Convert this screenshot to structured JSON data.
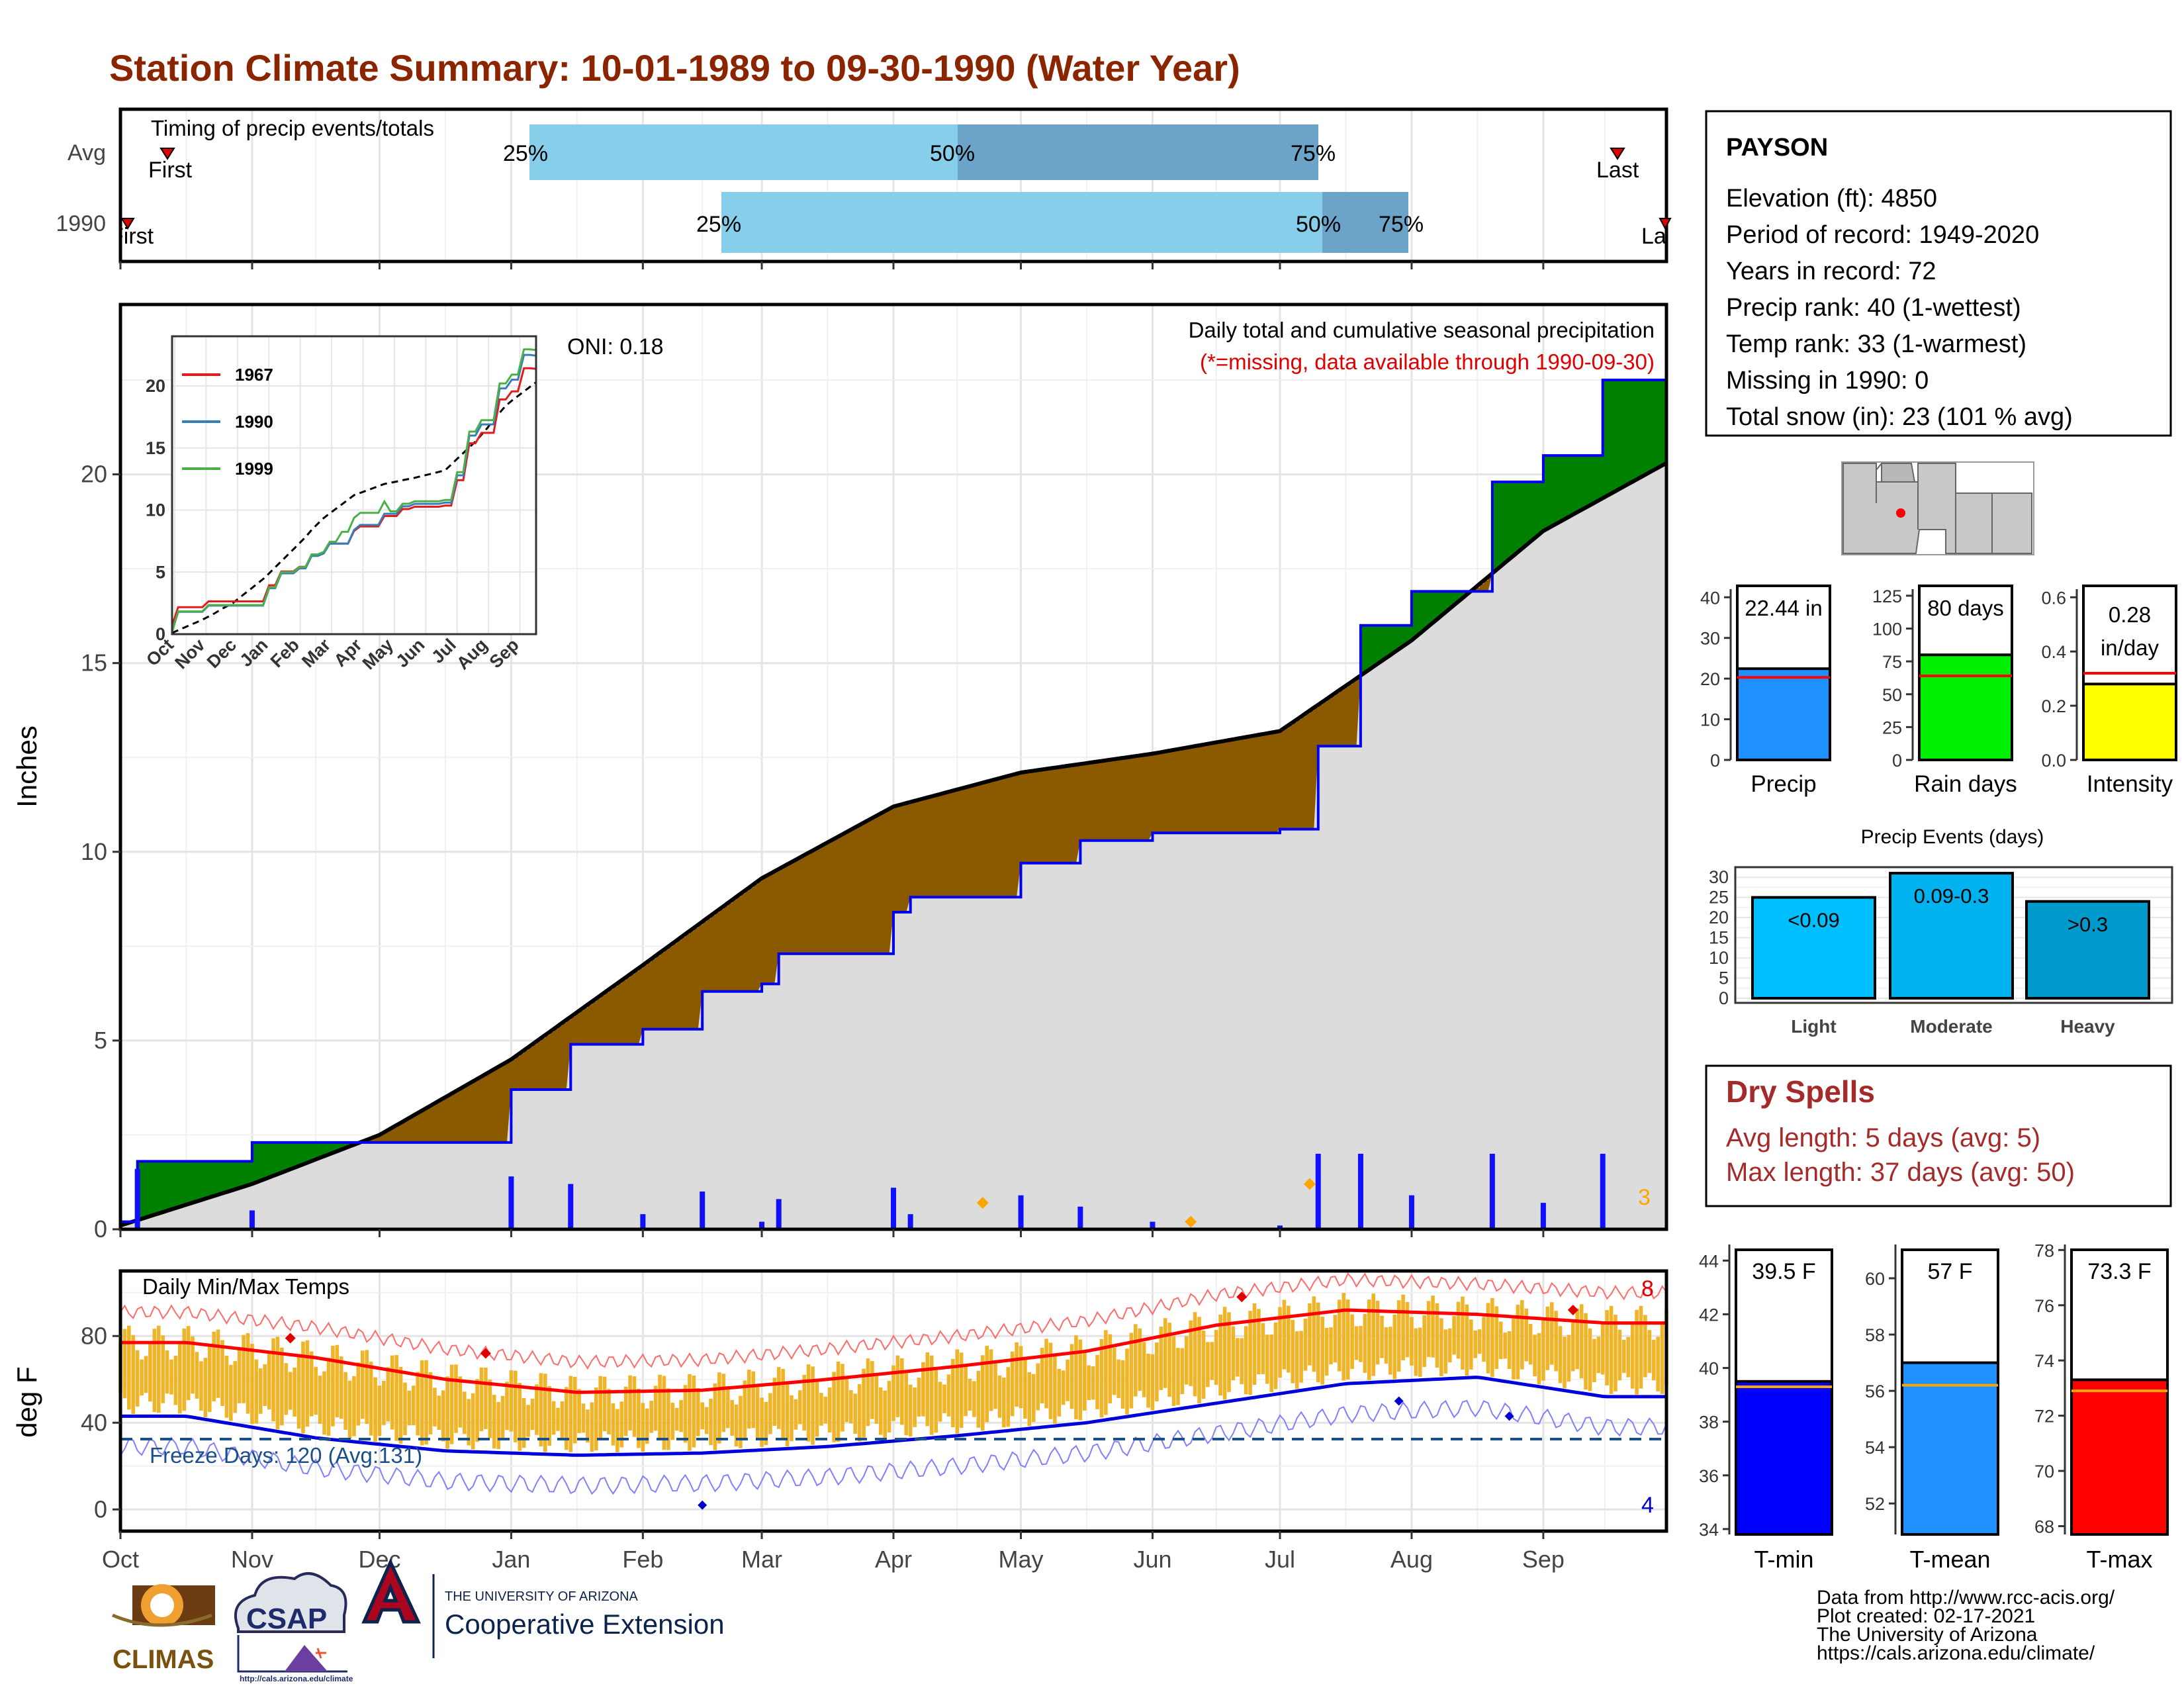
{
  "title": "Station Climate Summary: 10-01-1989 to 09-30-1990 (Water Year)",
  "timing_panel": {
    "label": "Timing of precip events/totals",
    "rows": [
      {
        "name": "Avg",
        "first_label": "First",
        "last_label": "Last",
        "q25": "25%",
        "q50": "50%",
        "q75": "75%"
      },
      {
        "name": "1990",
        "first_label": "First",
        "last_label": "Last",
        "q25": "25%",
        "q50": "50%",
        "q75": "75%"
      }
    ]
  },
  "precip_panel": {
    "y_axis_label": "Inches",
    "y_ticks": [
      "0",
      "5",
      "10",
      "15",
      "20"
    ],
    "caption": "Daily total and cumulative seasonal precipitation",
    "missing_note": "(*=missing, data available through 1990-09-30)",
    "oni": "ONI: 0.18",
    "extreme_count": "3"
  },
  "inset": {
    "legend": [
      "1967",
      "1990",
      "1999"
    ],
    "colors": [
      "#e41a1c",
      "#377eb8",
      "#4daf4a"
    ],
    "y_ticks": [
      "0",
      "5",
      "10",
      "15",
      "20"
    ],
    "x_ticks": [
      "Oct",
      "Nov",
      "Dec",
      "Jan",
      "Feb",
      "Mar",
      "Apr",
      "May",
      "Jun",
      "Jul",
      "Aug",
      "Sep"
    ]
  },
  "temp_panel": {
    "label": "Daily Min/Max Temps",
    "y_axis_label": "deg F",
    "y_ticks": [
      "0",
      "40",
      "80"
    ],
    "freeze_days": "Freeze Days: 120 (Avg:131)",
    "max_records": "8",
    "min_records": "4"
  },
  "x_axis": {
    "months": [
      "Oct",
      "Nov",
      "Dec",
      "Jan",
      "Feb",
      "Mar",
      "Apr",
      "May",
      "Jun",
      "Jul",
      "Aug",
      "Sep"
    ]
  },
  "station": {
    "name": "PAYSON",
    "lines": [
      "Elevation (ft): 4850",
      "Period of record: 1949-2020",
      "Years in record: 72",
      "Precip rank: 40 (1-wettest)",
      "Temp rank: 33 (1-warmest)",
      "Missing in 1990: 0",
      "Total snow (in): 23 (101 % avg)"
    ]
  },
  "summary_bars": [
    {
      "label": "Precip",
      "value_label": "22.44 in",
      "ticks": [
        "0",
        "10",
        "20",
        "30",
        "40"
      ],
      "color": "#1e90ff"
    },
    {
      "label": "Rain days",
      "value_label": "80 days",
      "ticks": [
        "0",
        "25",
        "50",
        "75",
        "100",
        "125"
      ],
      "color": "#00ee00"
    },
    {
      "label": "Intensity",
      "value_label_1": "0.28",
      "value_label_2": "in/day",
      "ticks": [
        "0.0",
        "0.2",
        "0.4",
        "0.6"
      ],
      "color": "#ffff00"
    }
  ],
  "events": {
    "title": "Precip Events (days)",
    "categories": [
      "Light",
      "Moderate",
      "Heavy"
    ],
    "labels": [
      "<0.09",
      "0.09-0.3",
      ">0.3"
    ],
    "ticks": [
      "0",
      "5",
      "10",
      "15",
      "20",
      "25",
      "30"
    ]
  },
  "dry_spells": {
    "title": "Dry Spells",
    "avg": "Avg length: 5 days (avg: 5)",
    "max": "Max length: 37 days (avg: 50)"
  },
  "temp_bars": [
    {
      "label": "T-min",
      "value_label": "39.5 F",
      "ticks": [
        "34",
        "36",
        "38",
        "40",
        "42",
        "44"
      ],
      "color": "#0000ff"
    },
    {
      "label": "T-mean",
      "value_label": "57 F",
      "ticks": [
        "52",
        "54",
        "56",
        "58",
        "60"
      ],
      "color": "#1e90ff"
    },
    {
      "label": "T-max",
      "value_label": "73.3 F",
      "ticks": [
        "68",
        "70",
        "72",
        "74",
        "76",
        "78"
      ],
      "color": "#ff0000"
    }
  ],
  "footer": {
    "lines": [
      "Data from http://www.rcc-acis.org/",
      "Plot created: 02-17-2021",
      "The University of Arizona",
      "https://cals.arizona.edu/climate/"
    ],
    "logo_climas": "CLIMAS",
    "logo_csap": "CSAP",
    "logo_csap_url": "http://cals.arizona.edu/climate",
    "ua_small": "THE UNIVERSITY OF ARIZONA",
    "ua_big": "Cooperative Extension"
  },
  "chart_data": [
    {
      "type": "area",
      "title": "Daily total and cumulative seasonal precipitation",
      "ylabel": "Inches",
      "ylim": [
        0,
        24.5
      ],
      "x": [
        "1989-10-01",
        "1990-09-30"
      ],
      "series": [
        {
          "name": "",
          "points": [
            [
              "1989-10-01",
              0.2
            ],
            [
              "1989-10-05",
              1.8
            ],
            [
              "1989-11-01",
              2.3
            ],
            [
              "1989-12-01",
              2.3
            ],
            [
              "1990-01-01",
              3.7
            ],
            [
              "1990-01-15",
              4.9
            ],
            [
              "1990-02-01",
              5.3
            ],
            [
              "1990-02-15",
              6.3
            ],
            [
              "1990-03-01",
              6.5
            ],
            [
              "1990-03-05",
              7.3
            ],
            [
              "1990-04-01",
              8.4
            ],
            [
              "1990-04-05",
              8.8
            ],
            [
              "1990-05-01",
              9.7
            ],
            [
              "1990-05-15",
              10.3
            ],
            [
              "1990-06-01",
              10.5
            ],
            [
              "1990-07-01",
              10.6
            ],
            [
              "1990-07-10",
              12.8
            ],
            [
              "1990-07-20",
              16.0
            ],
            [
              "1990-08-01",
              16.9
            ],
            [
              "1990-08-20",
              19.8
            ],
            [
              "1990-09-01",
              20.5
            ],
            [
              "1990-09-15",
              22.5
            ],
            [
              "1990-09-30",
              22.44
            ]
          ]
        },
        {
          "name": "",
          "points": [
            [
              "1989-10-01",
              0.1
            ],
            [
              "1989-11-01",
              1.2
            ],
            [
              "1989-12-01",
              2.5
            ],
            [
              "1990-01-01",
              4.5
            ],
            [
              "1990-02-01",
              7.0
            ],
            [
              "1990-03-01",
              9.3
            ],
            [
              "1990-04-01",
              11.2
            ],
            [
              "1990-05-01",
              12.1
            ],
            [
              "1990-06-01",
              12.6
            ],
            [
              "1990-07-01",
              13.2
            ],
            [
              "1990-08-01",
              15.6
            ],
            [
              "1990-09-01",
              18.5
            ],
            [
              "1990-09-30",
              20.3
            ]
          ]
        }
      ]
    },
    {
      "type": "line",
      "title": "Daily Min/Max Temps",
      "ylabel": "deg F",
      "ylim": [
        -10,
        110
      ],
      "x": [
        "Oct",
        "Nov",
        "Dec",
        "Jan",
        "Feb",
        "Mar",
        "Apr",
        "May",
        "Jun",
        "Jul",
        "Aug",
        "Sep"
      ],
      "series": [
        {
          "name": "",
          "values": [
            77,
            70,
            60,
            54,
            55,
            60,
            66,
            73,
            85,
            92,
            90,
            86
          ]
        },
        {
          "name": "",
          "values": [
            43,
            33,
            27,
            25,
            26,
            29,
            34,
            40,
            49,
            58,
            61,
            52
          ]
        }
      ]
    },
    {
      "type": "bar",
      "title": "Precip Events (days)",
      "categories": [
        "Light",
        "Moderate",
        "Heavy"
      ],
      "values": [
        25,
        31,
        24
      ],
      "ylim": [
        0,
        32
      ]
    }
  ]
}
